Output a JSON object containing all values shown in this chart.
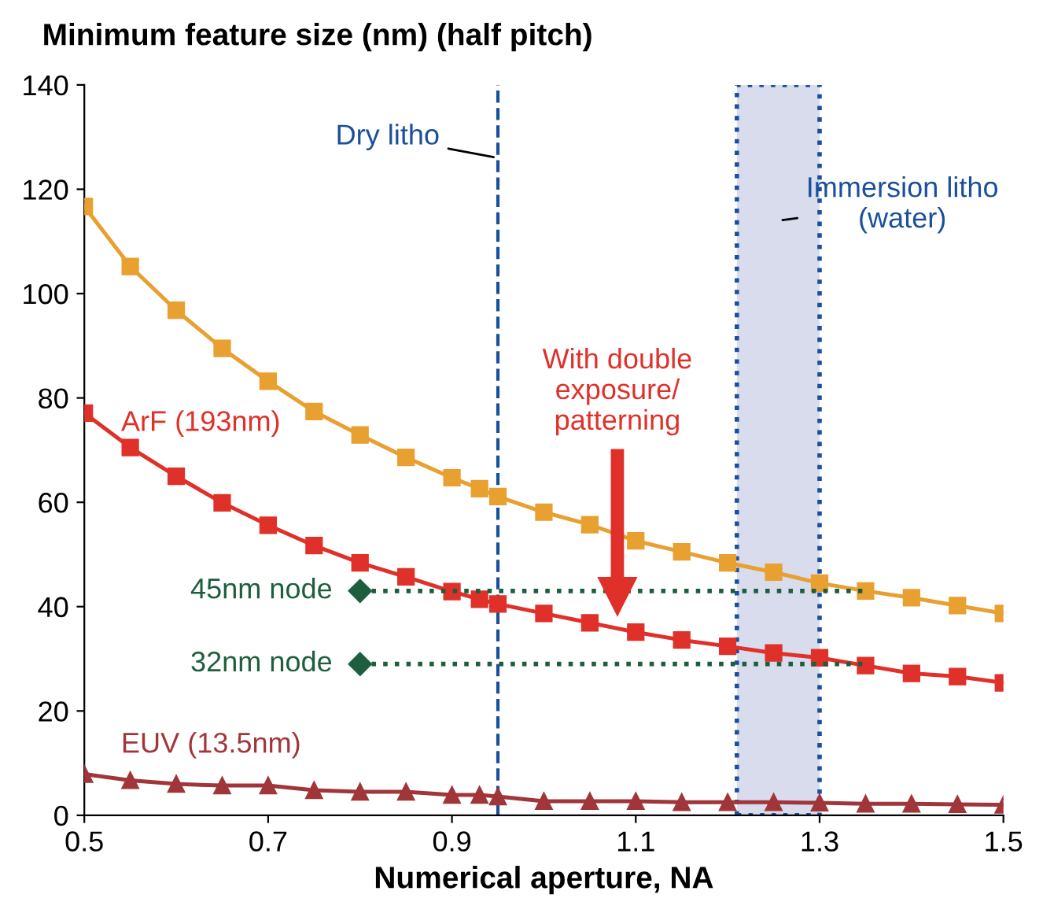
{
  "chart_data": {
    "type": "line",
    "ylabel": "Minimum feature size (nm) (half pitch)",
    "xlabel": "Numerical aperture, NA",
    "xlim": [
      0.5,
      1.5
    ],
    "xticks": [
      0.5,
      0.7,
      0.9,
      1.1,
      1.3,
      1.5
    ],
    "ylim": [
      0,
      140
    ],
    "yticks": [
      0,
      20,
      40,
      60,
      80,
      100,
      120,
      140
    ],
    "grid": false,
    "legend": false,
    "marker": "square",
    "series": [
      {
        "color": "#e8a030",
        "x": [
          0.5,
          0.55,
          0.6,
          0.65,
          0.7,
          0.75,
          0.8,
          0.85,
          0.9,
          0.93,
          0.95,
          1.0,
          1.05,
          1.1,
          1.15,
          1.2,
          1.25,
          1.3,
          1.35,
          1.4,
          1.45,
          1.5
        ],
        "values": [
          116.7,
          105.2,
          96.8,
          89.5,
          83.2,
          77.4,
          72.9,
          68.6,
          64.7,
          62.6,
          61.1,
          58.1,
          55.7,
          52.6,
          50.5,
          48.4,
          46.6,
          44.5,
          43.0,
          41.7,
          40.2,
          38.7
        ]
      },
      {
        "name": "ArF (193nm)",
        "color": "#e0302a",
        "x": [
          0.5,
          0.55,
          0.6,
          0.65,
          0.7,
          0.75,
          0.8,
          0.85,
          0.9,
          0.93,
          0.95,
          1.0,
          1.05,
          1.1,
          1.15,
          1.2,
          1.25,
          1.3,
          1.35,
          1.4,
          1.45,
          1.5
        ],
        "values": [
          77.1,
          70.5,
          65.0,
          59.9,
          55.6,
          51.7,
          48.4,
          45.7,
          42.9,
          41.4,
          40.5,
          38.7,
          36.9,
          35.1,
          33.6,
          32.4,
          31.1,
          30.2,
          28.7,
          27.2,
          26.6,
          25.4
        ]
      },
      {
        "name": "EUV (13.5nm)",
        "color": "#a0363a",
        "marker": "triangle",
        "x": [
          0.5,
          0.55,
          0.6,
          0.65,
          0.7,
          0.75,
          0.8,
          0.85,
          0.9,
          0.93,
          0.95,
          1.0,
          1.05,
          1.1,
          1.15,
          1.2,
          1.25,
          1.3,
          1.35,
          1.4,
          1.45,
          1.5
        ],
        "values": [
          7.9,
          6.7,
          6.0,
          5.7,
          5.7,
          4.8,
          4.5,
          4.5,
          3.9,
          3.9,
          3.6,
          2.7,
          2.7,
          2.7,
          2.5,
          2.5,
          2.5,
          2.4,
          2.2,
          2.2,
          2.1,
          2.0
        ]
      },
      {
        "name": "45nm node",
        "color": "#1e5e3e",
        "marker": "diamond",
        "line_style": "dotted",
        "x": [
          0.8,
          1.35
        ],
        "values": [
          43,
          43
        ]
      },
      {
        "name": "32nm node",
        "color": "#1e5e3e",
        "marker": "diamond",
        "line_style": "dotted",
        "x": [
          0.8,
          1.35
        ],
        "values": [
          29,
          29
        ]
      }
    ],
    "ref_lines": [
      {
        "axis": "x",
        "value": 0.95,
        "label": "Dry litho",
        "color": "#1a4f9c",
        "line_style": "dashed"
      }
    ],
    "bands": [
      {
        "axis": "x",
        "from": 1.21,
        "to": 1.3,
        "label": "Immersion litho (water)",
        "color": "#d8dcec"
      }
    ],
    "annotations": [
      "With double exposure/patterning"
    ]
  }
}
